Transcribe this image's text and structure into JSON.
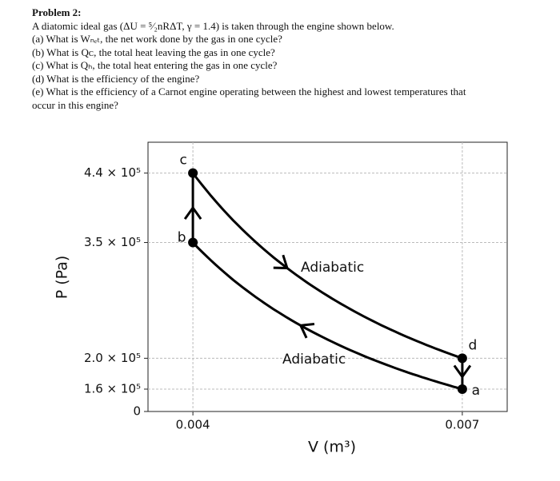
{
  "problem": {
    "title": "Problem 2:",
    "lines": [
      "A diatomic ideal gas (ΔU = ⁵⁄₂nRΔT, γ = 1.4) is taken through the engine shown below.",
      "(a) What is Wₙₑₜ, the net work done by the gas in one cycle?",
      "(b) What is Qᴄ, the total heat leaving the gas in one cycle?",
      "(c) What is Qₕ, the total heat entering the gas in one cycle?",
      "(d) What is the efficiency of the engine?",
      "(e) What is the efficiency of a Carnot engine operating between the highest and lowest temperatures that",
      "occur in this engine?"
    ]
  },
  "chart_data": {
    "type": "pv-cycle",
    "xlabel": "V (m³)",
    "ylabel": "P (Pa)",
    "x": [
      0.007,
      0.004,
      0.004,
      0.007
    ],
    "values": [
      160000,
      350000,
      440000,
      200000
    ],
    "point_labels": [
      "a",
      "b",
      "c",
      "d"
    ],
    "annotations": [
      "Adiabatic",
      "Adiabatic"
    ],
    "xlim": [
      0.0035,
      0.0075
    ],
    "xticks": [
      0.004,
      0.007
    ],
    "ylim": [
      0,
      480000
    ],
    "yticks": [
      {
        "value": 0,
        "label": "0"
      },
      {
        "value": 160000,
        "label": "1.6 × 10⁵"
      },
      {
        "value": 200000,
        "label": "2.0 × 10⁵"
      },
      {
        "value": 350000,
        "label": "3.5 × 10⁵"
      },
      {
        "value": 440000,
        "label": "4.4 × 10⁵"
      }
    ],
    "broken_axis": true,
    "grid": true,
    "color": "#000000"
  }
}
